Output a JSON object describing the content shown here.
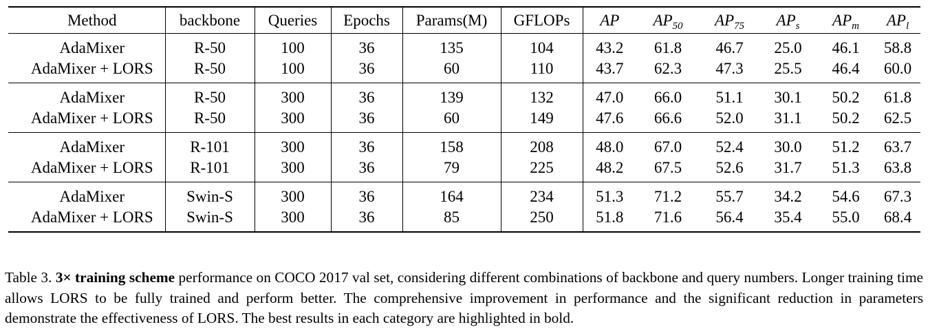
{
  "table": {
    "headers": {
      "method": "Method",
      "backbone": "backbone",
      "queries": "Queries",
      "epochs": "Epochs",
      "params": "Params(M)",
      "gflops": "GFLOPs",
      "ap": "AP",
      "ap50_base": "AP",
      "ap50_sub": "50",
      "ap75_base": "AP",
      "ap75_sub": "75",
      "aps_base": "AP",
      "aps_sub": "s",
      "apm_base": "AP",
      "apm_sub": "m",
      "apl_base": "AP",
      "apl_sub": "l"
    },
    "groups": [
      {
        "rows": [
          {
            "method": "AdaMixer",
            "backbone": "R-50",
            "queries": "100",
            "epochs": "36",
            "params": "135",
            "gflops": "104",
            "ap": "43.2",
            "ap50": "61.8",
            "ap75": "46.7",
            "aps": "25.0",
            "apm": "46.1",
            "apl": "58.8"
          },
          {
            "method": "AdaMixer + LORS",
            "backbone": "R-50",
            "queries": "100",
            "epochs": "36",
            "params": "60",
            "gflops": "110",
            "ap": "43.7",
            "ap50": "62.3",
            "ap75": "47.3",
            "aps": "25.5",
            "apm": "46.4",
            "apl": "60.0"
          }
        ]
      },
      {
        "rows": [
          {
            "method": "AdaMixer",
            "backbone": "R-50",
            "queries": "300",
            "epochs": "36",
            "params": "139",
            "gflops": "132",
            "ap": "47.0",
            "ap50": "66.0",
            "ap75": "51.1",
            "aps": "30.1",
            "apm": "50.2",
            "apl": "61.8"
          },
          {
            "method": "AdaMixer + LORS",
            "backbone": "R-50",
            "queries": "300",
            "epochs": "36",
            "params": "60",
            "gflops": "149",
            "ap": "47.6",
            "ap50": "66.6",
            "ap75": "52.0",
            "aps": "31.1",
            "apm": "50.2",
            "apl": "62.5"
          }
        ]
      },
      {
        "rows": [
          {
            "method": "AdaMixer",
            "backbone": "R-101",
            "queries": "300",
            "epochs": "36",
            "params": "158",
            "gflops": "208",
            "ap": "48.0",
            "ap50": "67.0",
            "ap75": "52.4",
            "aps": "30.0",
            "apm": "51.2",
            "apl": "63.7"
          },
          {
            "method": "AdaMixer + LORS",
            "backbone": "R-101",
            "queries": "300",
            "epochs": "36",
            "params": "79",
            "gflops": "225",
            "ap": "48.2",
            "ap50": "67.5",
            "ap75": "52.6",
            "aps": "31.7",
            "apm": "51.3",
            "apl": "63.8"
          }
        ]
      },
      {
        "rows": [
          {
            "method": "AdaMixer",
            "backbone": "Swin-S",
            "queries": "300",
            "epochs": "36",
            "params": "164",
            "gflops": "234",
            "ap": "51.3",
            "ap50": "71.2",
            "ap75": "55.7",
            "aps": "34.2",
            "apm": "54.6",
            "apl": "67.3"
          },
          {
            "method": "AdaMixer + LORS",
            "backbone": "Swin-S",
            "queries": "300",
            "epochs": "36",
            "params": "85",
            "gflops": "250",
            "ap": "51.8",
            "ap50": "71.6",
            "ap75": "56.4",
            "aps": "35.4",
            "apm": "55.0",
            "apl": "68.4"
          }
        ]
      }
    ]
  },
  "caption": {
    "label": "Table 3.",
    "emphasis": "3× training scheme",
    "text": "performance on COCO 2017 val set, considering different combinations of backbone and query numbers. Longer training time allows LORS to be fully trained and perform better.  The comprehensive improvement in performance and the significant reduction in parameters demonstrate the effectiveness of LORS. The best results in each category are highlighted in bold."
  }
}
